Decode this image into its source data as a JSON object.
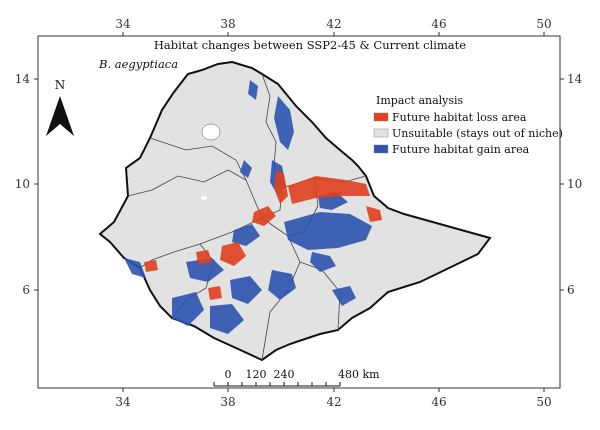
{
  "map": {
    "title": "Habitat changes between SSP2-45 & Current climate",
    "species": "B. aegyptiaca",
    "north_label": "N",
    "x_ticks": [
      "34",
      "38",
      "42",
      "46",
      "50"
    ],
    "y_ticks": [
      "14",
      "10",
      "6"
    ],
    "legend": {
      "title": "Impact analysis",
      "items": [
        {
          "label": "Future habitat loss area",
          "color": "#e0401e"
        },
        {
          "label": "Unsuitable (stays out of niche)",
          "color": "#e2e2e2"
        },
        {
          "label": "Future habitat gain area",
          "color": "#2e54b0"
        }
      ]
    },
    "scale_bar": {
      "ticks": [
        "0",
        "120",
        "240",
        "480 km"
      ]
    },
    "colors": {
      "land": "#e2e2e2",
      "loss": "#e0401e",
      "gain": "#2e54b0",
      "border": "#111111"
    }
  }
}
